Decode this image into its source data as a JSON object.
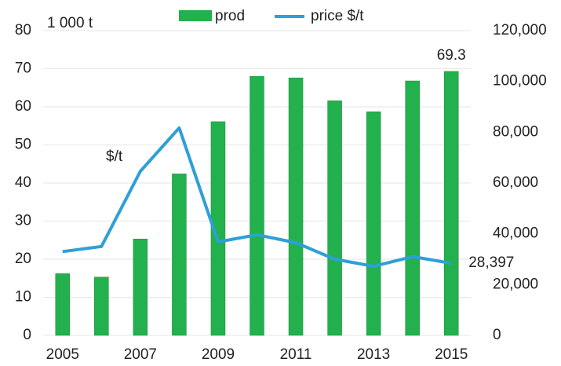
{
  "chart_data": {
    "type": "bar-line",
    "categories": [
      "2005",
      null,
      "2007",
      null,
      "2009",
      null,
      "2011",
      null,
      "2013",
      null,
      "2015"
    ],
    "series": [
      {
        "name": "prod",
        "color": "#22b14c",
        "values": [
          16.2,
          15.3,
          25.3,
          42.4,
          56.1,
          68.0,
          67.6,
          61.6,
          58.7,
          66.8,
          69.3
        ]
      },
      {
        "name": "price $/t",
        "color": "#2e9fd8",
        "axis": "y2",
        "values": [
          33000,
          35000,
          64600,
          81700,
          36800,
          39600,
          36500,
          30000,
          27200,
          31000,
          28397
        ],
        "value_labels": [
          null,
          null,
          null,
          null,
          null,
          null,
          null,
          null,
          null,
          null,
          "28,397"
        ]
      }
    ],
    "annotations": [
      "1 000 t",
      "$/t"
    ],
    "ylim": [
      0,
      80
    ],
    "yticks": [
      0,
      10,
      20,
      30,
      40,
      50,
      60,
      70,
      80
    ],
    "y2lim": [
      0,
      120000
    ],
    "y2ticks": [
      0,
      {
        "value": 20000,
        "label": "20,000"
      },
      {
        "value": 40000,
        "label": "40,000"
      },
      {
        "value": 60000,
        "label": "60,000"
      },
      {
        "value": 80000,
        "label": "80,000"
      },
      {
        "value": 100000,
        "label": "100,000"
      },
      {
        "value": 120000,
        "label": "120,000"
      }
    ],
    "grid": true,
    "legend": "top"
  }
}
